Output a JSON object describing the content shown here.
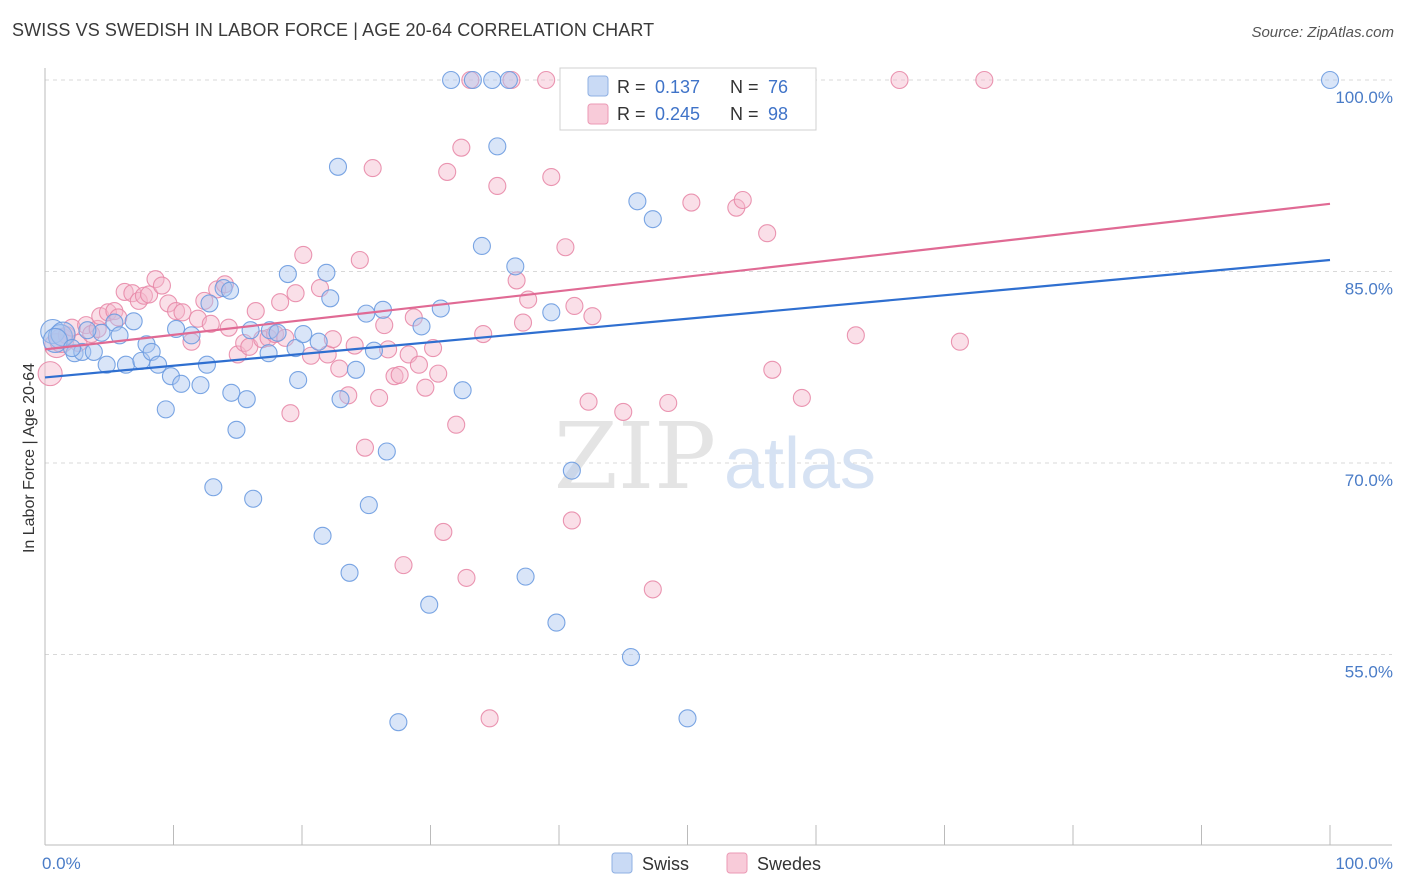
{
  "title": "SWISS VS SWEDISH IN LABOR FORCE | AGE 20-64 CORRELATION CHART",
  "source": "Source: ZipAtlas.com",
  "watermark": {
    "zip": "ZIP",
    "atlas": "atlas"
  },
  "colors": {
    "swiss": "#6b9be0",
    "swiss_fill": "#aac6f0",
    "swiss_line": "#2f6fd0",
    "swedes": "#e88aa8",
    "swedes_fill": "#f4b8cb",
    "swedes_line": "#e06a94",
    "tick": "#4a7cc7",
    "grid": "#d8d8d8"
  },
  "legend": {
    "r_label": "R =",
    "n_label": "N =",
    "rows": [
      {
        "series": "swiss",
        "r": "0.137",
        "n": "76"
      },
      {
        "series": "swedes",
        "r": "0.245",
        "n": "98"
      }
    ]
  },
  "bottom_legend": [
    "Swiss",
    "Swedes"
  ],
  "chart_data": {
    "type": "scatter",
    "title": "SWISS VS SWEDISH IN LABOR FORCE | AGE 20-64 CORRELATION CHART",
    "xlabel": "",
    "ylabel": "In Labor Force | Age 20-64",
    "xlim": [
      0,
      100
    ],
    "ylim": [
      40,
      101.5
    ],
    "x_tick_labels": [
      "0.0%",
      "100.0%"
    ],
    "y_ticks": [
      100,
      85,
      70,
      55
    ],
    "y_tick_labels": [
      "100.0%",
      "85.0%",
      "70.0%",
      "55.0%"
    ],
    "grid": "horizontal dashed",
    "legend_position": "top-center",
    "series": [
      {
        "name": "Swiss",
        "r": 0.137,
        "n": 76,
        "trend": [
          [
            0,
            76.7
          ],
          [
            100,
            85.9
          ]
        ],
        "points": [
          [
            0.6,
            80.3
          ],
          [
            1.2,
            79.9
          ],
          [
            1.4,
            80.1
          ],
          [
            2.3,
            78.6
          ],
          [
            2.9,
            78.7
          ],
          [
            3.8,
            78.7
          ],
          [
            4.4,
            80.2
          ],
          [
            4.8,
            77.7
          ],
          [
            5.4,
            81.0
          ],
          [
            5.8,
            80.0
          ],
          [
            6.3,
            77.7
          ],
          [
            6.9,
            81.1
          ],
          [
            7.5,
            78.0
          ],
          [
            7.9,
            79.3
          ],
          [
            8.3,
            78.7
          ],
          [
            8.8,
            77.7
          ],
          [
            9.4,
            74.2
          ],
          [
            9.8,
            76.8
          ],
          [
            10.2,
            80.5
          ],
          [
            10.6,
            76.2
          ],
          [
            11.4,
            80.0
          ],
          [
            12.8,
            82.5
          ],
          [
            12.1,
            76.1
          ],
          [
            12.6,
            77.7
          ],
          [
            13.1,
            68.1
          ],
          [
            13.9,
            83.7
          ],
          [
            14.4,
            83.5
          ],
          [
            14.5,
            75.5
          ],
          [
            14.9,
            72.6
          ],
          [
            15.7,
            75.0
          ],
          [
            16.0,
            80.4
          ],
          [
            16.2,
            67.2
          ],
          [
            17.4,
            78.6
          ],
          [
            17.5,
            80.4
          ],
          [
            18.1,
            80.2
          ],
          [
            18.9,
            84.8
          ],
          [
            19.5,
            79.0
          ],
          [
            19.7,
            76.5
          ],
          [
            20.1,
            80.1
          ],
          [
            21.3,
            79.5
          ],
          [
            21.6,
            64.3
          ],
          [
            21.9,
            84.9
          ],
          [
            22.2,
            82.9
          ],
          [
            22.8,
            93.2
          ],
          [
            23.0,
            75.0
          ],
          [
            23.7,
            61.4
          ],
          [
            24.2,
            77.3
          ],
          [
            25.0,
            81.7
          ],
          [
            25.2,
            66.7
          ],
          [
            25.6,
            78.8
          ],
          [
            26.3,
            82.0
          ],
          [
            26.6,
            70.9
          ],
          [
            27.5,
            49.7
          ],
          [
            29.3,
            80.7
          ],
          [
            29.9,
            58.9
          ],
          [
            30.8,
            82.1
          ],
          [
            31.6,
            100.0
          ],
          [
            32.5,
            75.7
          ],
          [
            33.3,
            100.0
          ],
          [
            34.0,
            87.0
          ],
          [
            34.8,
            100.0
          ],
          [
            35.2,
            94.8
          ],
          [
            36.1,
            100.0
          ],
          [
            36.6,
            85.4
          ],
          [
            37.4,
            61.1
          ],
          [
            39.4,
            81.8
          ],
          [
            39.8,
            57.5
          ],
          [
            41.0,
            69.4
          ],
          [
            45.6,
            54.8
          ],
          [
            46.1,
            90.5
          ],
          [
            47.3,
            89.1
          ],
          [
            50.0,
            50.0
          ],
          [
            100.0,
            100.0
          ],
          [
            0.8,
            79.6
          ],
          [
            2.1,
            79.0
          ],
          [
            3.3,
            80.4
          ]
        ]
      },
      {
        "name": "Swedes",
        "r": 0.245,
        "n": 98,
        "trend": [
          [
            0,
            78.9
          ],
          [
            100,
            90.3
          ]
        ],
        "points": [
          [
            0.4,
            77.0
          ],
          [
            0.9,
            79.2
          ],
          [
            1.3,
            79.6
          ],
          [
            1.7,
            80.0
          ],
          [
            2.1,
            80.6
          ],
          [
            2.6,
            79.4
          ],
          [
            3.2,
            80.8
          ],
          [
            3.6,
            80.1
          ],
          [
            4.1,
            80.5
          ],
          [
            4.3,
            81.5
          ],
          [
            4.9,
            81.8
          ],
          [
            5.4,
            81.9
          ],
          [
            5.7,
            81.4
          ],
          [
            6.2,
            83.4
          ],
          [
            6.8,
            83.3
          ],
          [
            7.3,
            82.7
          ],
          [
            7.7,
            83.1
          ],
          [
            8.1,
            83.2
          ],
          [
            8.6,
            84.4
          ],
          [
            9.1,
            83.9
          ],
          [
            9.6,
            82.5
          ],
          [
            10.2,
            81.9
          ],
          [
            10.7,
            81.8
          ],
          [
            11.4,
            79.5
          ],
          [
            11.9,
            81.3
          ],
          [
            12.4,
            82.7
          ],
          [
            12.9,
            80.9
          ],
          [
            13.4,
            83.6
          ],
          [
            14.0,
            84.0
          ],
          [
            14.3,
            80.6
          ],
          [
            15.0,
            78.5
          ],
          [
            15.5,
            79.4
          ],
          [
            15.9,
            79.1
          ],
          [
            16.4,
            81.9
          ],
          [
            16.9,
            79.7
          ],
          [
            17.4,
            79.8
          ],
          [
            17.9,
            80.1
          ],
          [
            18.3,
            82.6
          ],
          [
            18.7,
            79.8
          ],
          [
            19.1,
            73.9
          ],
          [
            19.5,
            83.3
          ],
          [
            20.1,
            86.3
          ],
          [
            20.7,
            78.4
          ],
          [
            21.4,
            83.7
          ],
          [
            22.0,
            78.5
          ],
          [
            22.4,
            79.7
          ],
          [
            22.9,
            77.4
          ],
          [
            23.6,
            75.3
          ],
          [
            24.1,
            79.2
          ],
          [
            24.5,
            85.9
          ],
          [
            24.9,
            71.2
          ],
          [
            25.5,
            93.1
          ],
          [
            26.0,
            75.1
          ],
          [
            26.4,
            80.8
          ],
          [
            26.7,
            78.9
          ],
          [
            27.2,
            76.8
          ],
          [
            27.6,
            76.9
          ],
          [
            27.9,
            62.0
          ],
          [
            28.3,
            78.5
          ],
          [
            28.7,
            81.4
          ],
          [
            29.1,
            77.7
          ],
          [
            29.6,
            75.9
          ],
          [
            30.2,
            79.0
          ],
          [
            30.6,
            77.0
          ],
          [
            31.0,
            64.6
          ],
          [
            31.3,
            92.8
          ],
          [
            32.0,
            73.0
          ],
          [
            32.4,
            94.7
          ],
          [
            32.8,
            61.0
          ],
          [
            33.1,
            100.0
          ],
          [
            34.1,
            80.1
          ],
          [
            34.6,
            50.0
          ],
          [
            35.2,
            91.7
          ],
          [
            36.3,
            100.0
          ],
          [
            36.7,
            84.3
          ],
          [
            37.2,
            81.0
          ],
          [
            37.6,
            82.8
          ],
          [
            39.0,
            100.0
          ],
          [
            39.4,
            92.4
          ],
          [
            40.5,
            86.9
          ],
          [
            41.0,
            65.5
          ],
          [
            41.2,
            82.3
          ],
          [
            42.3,
            74.8
          ],
          [
            42.6,
            81.5
          ],
          [
            45.0,
            74.0
          ],
          [
            47.3,
            60.1
          ],
          [
            48.5,
            74.7
          ],
          [
            50.3,
            90.4
          ],
          [
            50.5,
            100.0
          ],
          [
            53.8,
            90.0
          ],
          [
            54.3,
            90.6
          ],
          [
            56.2,
            88.0
          ],
          [
            56.6,
            77.3
          ],
          [
            58.9,
            75.1
          ],
          [
            63.1,
            80.0
          ],
          [
            66.5,
            100.0
          ],
          [
            71.2,
            79.5
          ],
          [
            73.1,
            100.0
          ]
        ]
      }
    ]
  }
}
